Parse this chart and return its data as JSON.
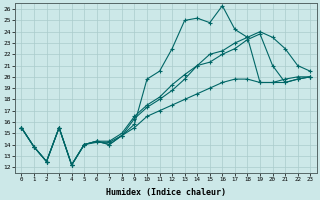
{
  "xlabel": "Humidex (Indice chaleur)",
  "xlim": [
    -0.5,
    23.5
  ],
  "ylim": [
    11.5,
    26.5
  ],
  "xticks": [
    0,
    1,
    2,
    3,
    4,
    5,
    6,
    7,
    8,
    9,
    10,
    11,
    12,
    13,
    14,
    15,
    16,
    17,
    18,
    19,
    20,
    21,
    22,
    23
  ],
  "yticks": [
    12,
    13,
    14,
    15,
    16,
    17,
    18,
    19,
    20,
    21,
    22,
    23,
    24,
    25,
    26
  ],
  "background_color": "#cce8e8",
  "grid_color": "#aacccc",
  "line_color": "#006666",
  "lines": [
    {
      "x": [
        0,
        1,
        2,
        3,
        4,
        5,
        6,
        7,
        8,
        9,
        10,
        11,
        12,
        13,
        14,
        15,
        16,
        17,
        18,
        19,
        20,
        21,
        22,
        23
      ],
      "y": [
        15.5,
        13.8,
        12.5,
        15.5,
        12.2,
        14.0,
        14.3,
        14.0,
        14.8,
        15.8,
        19.8,
        20.5,
        22.5,
        25.0,
        25.2,
        24.8,
        26.3,
        24.2,
        23.5,
        19.5,
        19.5,
        19.8,
        20.0,
        20.0
      ]
    },
    {
      "x": [
        0,
        1,
        2,
        3,
        4,
        5,
        6,
        7,
        8,
        9,
        10,
        11,
        12,
        13,
        14,
        15,
        16,
        17,
        18,
        19,
        20,
        21,
        22,
        23
      ],
      "y": [
        15.5,
        13.8,
        12.5,
        15.5,
        12.2,
        14.0,
        14.2,
        14.2,
        14.8,
        16.3,
        17.3,
        18.0,
        18.8,
        19.8,
        21.0,
        21.3,
        22.0,
        22.5,
        23.3,
        23.8,
        21.0,
        19.5,
        19.8,
        20.0
      ]
    },
    {
      "x": [
        0,
        1,
        2,
        3,
        4,
        5,
        6,
        7,
        8,
        9,
        10,
        11,
        12,
        13,
        14,
        15,
        16,
        17,
        18,
        19,
        20,
        21,
        22,
        23
      ],
      "y": [
        15.5,
        13.8,
        12.5,
        15.5,
        12.2,
        14.0,
        14.3,
        14.3,
        15.0,
        16.5,
        17.5,
        18.2,
        19.3,
        20.2,
        21.0,
        22.0,
        22.3,
        23.0,
        23.5,
        24.0,
        23.5,
        22.5,
        21.0,
        20.5
      ]
    },
    {
      "x": [
        0,
        1,
        2,
        3,
        4,
        5,
        6,
        7,
        8,
        9,
        10,
        11,
        12,
        13,
        14,
        15,
        16,
        17,
        18,
        19,
        20,
        21,
        22,
        23
      ],
      "y": [
        15.5,
        13.8,
        12.5,
        15.5,
        12.2,
        14.0,
        14.3,
        14.0,
        14.8,
        15.5,
        16.5,
        17.0,
        17.5,
        18.0,
        18.5,
        19.0,
        19.5,
        19.8,
        19.8,
        19.5,
        19.5,
        19.5,
        19.8,
        20.0
      ]
    }
  ]
}
